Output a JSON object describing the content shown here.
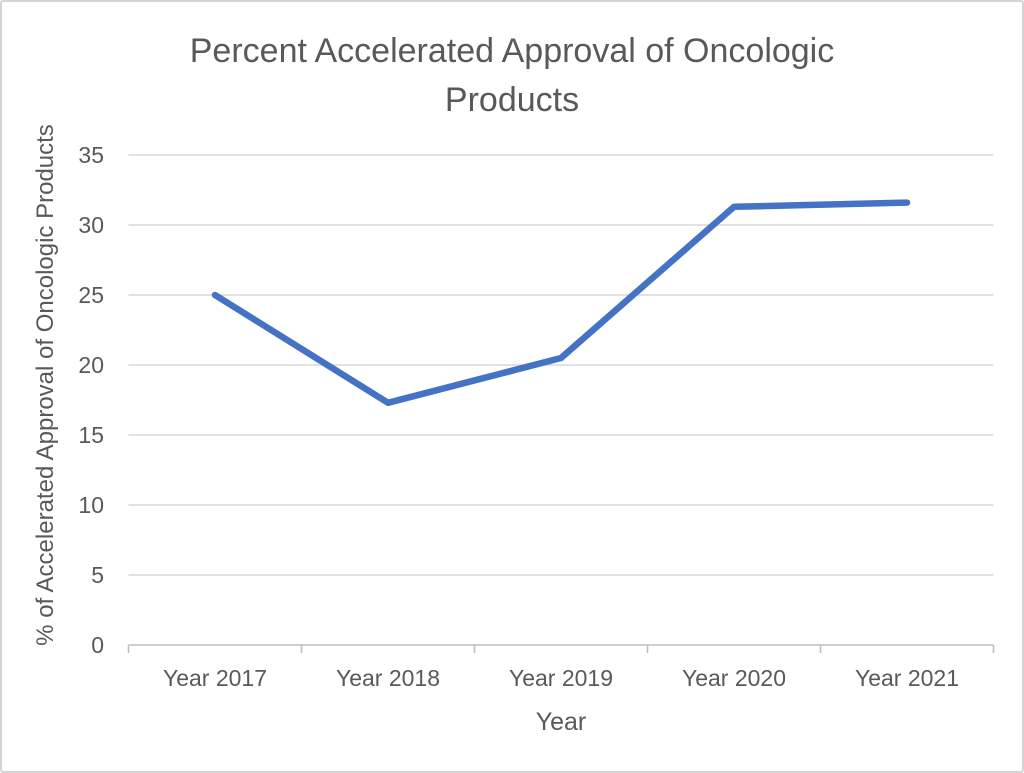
{
  "chart_data": {
    "type": "line",
    "title": "Percent Accelerated Approval of Oncologic Products",
    "xlabel": "Year",
    "ylabel": "% of Accelerated Approval of Oncologic Products",
    "categories": [
      "Year 2017",
      "Year 2018",
      "Year 2019",
      "Year 2020",
      "Year 2021"
    ],
    "values": [
      25,
      17.3,
      20.5,
      31.3,
      31.6
    ],
    "yticks": [
      0,
      5,
      10,
      15,
      20,
      25,
      30,
      35
    ],
    "ylim": [
      0,
      35
    ],
    "grid": true,
    "legend_position": "none",
    "line_color": "#4472C4",
    "gridline_color": "#D9D9D9",
    "axis_line_color": "#BFBFBF",
    "text_color": "#595959",
    "background_color": "#FFFFFF",
    "border_color": "#D4D4D4"
  }
}
